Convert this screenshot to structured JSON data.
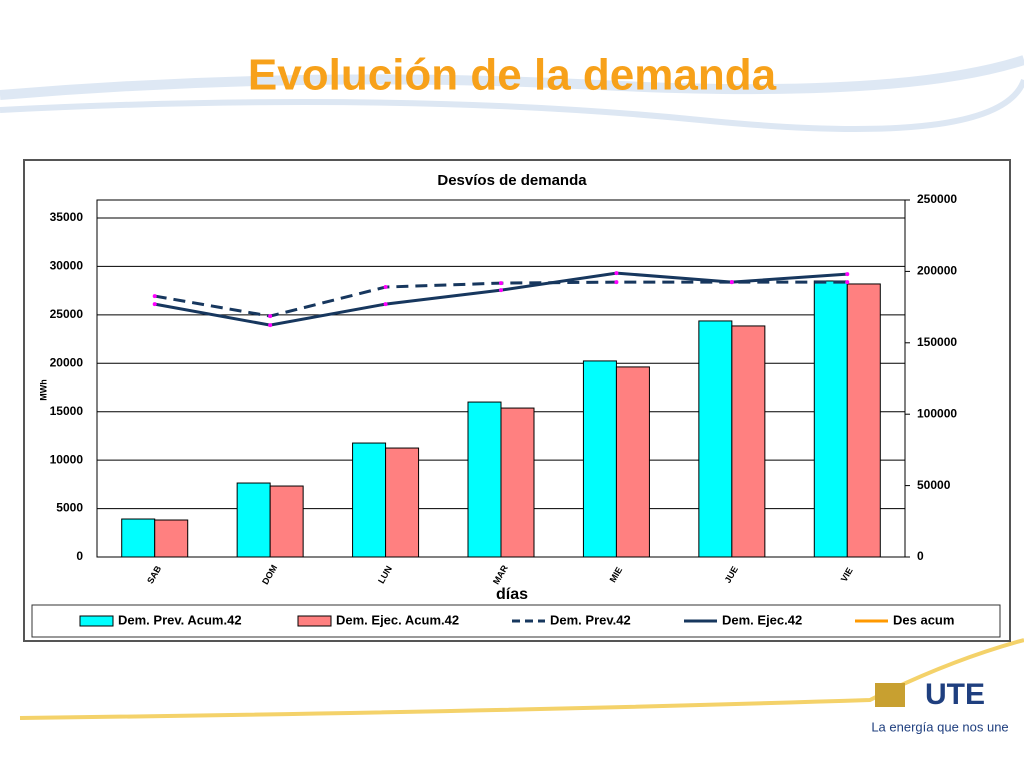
{
  "slide": {
    "title": "Evolución de la demanda",
    "logo": "UTE",
    "tagline": "La energía que nos une"
  },
  "chart_data": {
    "type": "bar_line",
    "title": "Desvíos de demanda",
    "y_label": "MWh",
    "x_label": "días",
    "categories": [
      "SAB",
      "DOM",
      "LUN",
      "MAR",
      "MIE",
      "JUE",
      "VIE"
    ],
    "series": [
      {
        "name": "Dem. Prev. Acum.42",
        "kind": "bar",
        "axis": "y2",
        "color": "#00ffff",
        "values": [
          26600,
          51800,
          79800,
          108500,
          137300,
          165300,
          193300
        ]
      },
      {
        "name": "Dem. Ejec. Acum.42",
        "kind": "bar",
        "axis": "y2",
        "color": "#ff8080",
        "values": [
          25900,
          49700,
          76300,
          104300,
          133100,
          161800,
          191200
        ]
      },
      {
        "name": "Dem. Prev.42",
        "kind": "line",
        "dash": true,
        "color": "#17375e",
        "values": [
          26940,
          24870,
          27870,
          28280,
          28380,
          28380,
          28380
        ]
      },
      {
        "name": "Dem. Ejec.42",
        "kind": "line",
        "dash": false,
        "color": "#17375e",
        "values": [
          26110,
          23940,
          26110,
          27550,
          29310,
          28380,
          29200
        ]
      },
      {
        "name": "Des acum",
        "kind": "line",
        "dash": false,
        "color": "#ff9900",
        "values": [
          null,
          null,
          null,
          null,
          null,
          null,
          null
        ]
      }
    ],
    "ylim": [
      0,
      35000
    ],
    "yticks": [
      0,
      5000,
      10000,
      15000,
      20000,
      25000,
      30000,
      35000
    ],
    "y2lim": [
      0,
      250000
    ],
    "y2ticks": [
      0,
      50000,
      100000,
      150000,
      200000,
      250000
    ],
    "grid": true
  }
}
